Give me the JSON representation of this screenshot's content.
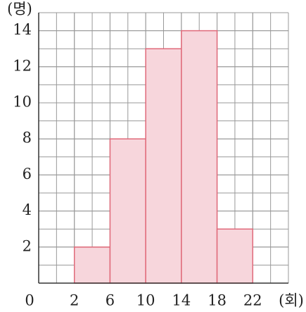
{
  "chart_data": {
    "type": "histogram",
    "bins": [
      2,
      6,
      10,
      14,
      18,
      22
    ],
    "values": [
      2,
      8,
      13,
      14,
      3
    ],
    "color": "#f7d6dc",
    "edge_color": "#e06a7a",
    "xlim": [
      -2,
      26
    ],
    "xticks": [
      2,
      6,
      10,
      14,
      18,
      22
    ],
    "ylim": [
      0,
      15
    ],
    "yticks": [
      2,
      4,
      6,
      8,
      10,
      12,
      14
    ],
    "origin_label": "0",
    "xlabel": "(회)",
    "ylabel": "(명)",
    "grid": true
  }
}
